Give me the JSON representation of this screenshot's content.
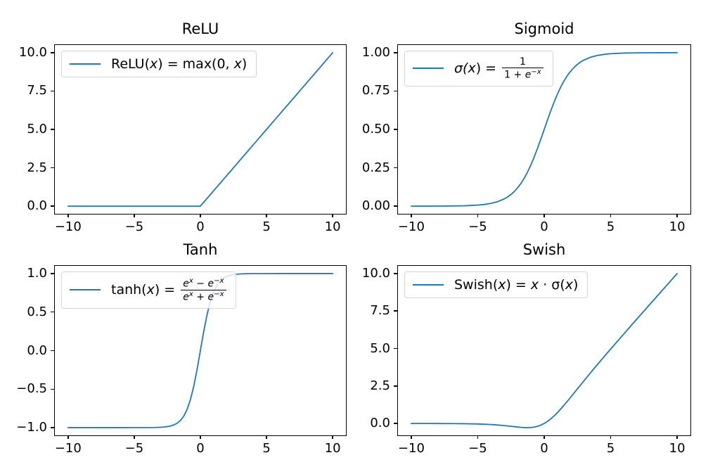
{
  "figure": {
    "background": "#ffffff",
    "line_color": "#1f77b4",
    "legend_position": "upper left"
  },
  "legends": {
    "relu": [
      "ReLU(",
      "x",
      ") = max(0, ",
      "x",
      ")"
    ],
    "sigmoid": {
      "lhs": [
        "σ(",
        "x",
        ") = "
      ],
      "num": "1",
      "den": [
        "1 + ",
        "e",
        "−x"
      ]
    },
    "tanh": {
      "lhs": [
        "tanh(",
        "x",
        ") = "
      ],
      "num": [
        "e",
        "x",
        " − ",
        "e",
        "−x"
      ],
      "den": [
        "e",
        "x",
        " + ",
        "e",
        "−x"
      ]
    },
    "swish": [
      "Swish(",
      "x",
      ") = ",
      "x",
      " · σ(",
      "x",
      ")"
    ]
  },
  "chart_data": [
    {
      "type": "line",
      "title": "ReLU",
      "legend_label": "ReLU(x) = max(0, x)",
      "color": "#1f77b4",
      "grid": false,
      "legend_position": "upper left",
      "xlim": [
        -11,
        11
      ],
      "ylim": [
        -0.5,
        10.5
      ],
      "xticks": [
        -10,
        -5,
        0,
        5,
        10
      ],
      "xtick_labels": [
        "−10",
        "−5",
        "0",
        "5",
        "10"
      ],
      "yticks": [
        0.0,
        2.5,
        5.0,
        7.5,
        10.0
      ],
      "ytick_labels": [
        "0.0",
        "2.5",
        "5.0",
        "7.5",
        "10.0"
      ],
      "x": [
        -10,
        -9,
        -8,
        -7,
        -6,
        -5,
        -4.5,
        -4,
        -3.5,
        -3,
        -2.75,
        -2.5,
        -2.25,
        -2,
        -1.75,
        -1.5,
        -1.25,
        -1,
        -0.75,
        -0.5,
        -0.25,
        0,
        0.25,
        0.5,
        0.75,
        1,
        1.25,
        1.5,
        1.75,
        2,
        2.25,
        2.5,
        2.75,
        3,
        3.5,
        4,
        4.5,
        5,
        6,
        7,
        8,
        9,
        10
      ],
      "y": [
        0,
        0,
        0,
        0,
        0,
        0,
        0,
        0,
        0,
        0,
        0,
        0,
        0,
        0,
        0,
        0,
        0,
        0,
        0,
        0,
        0,
        0,
        0.25,
        0.5,
        0.75,
        1,
        1.25,
        1.5,
        1.75,
        2,
        2.25,
        2.5,
        2.75,
        3,
        3.5,
        4,
        4.5,
        5,
        6,
        7,
        8,
        9,
        10
      ]
    },
    {
      "type": "line",
      "title": "Sigmoid",
      "legend_label": "σ(x) = 1 / (1 + e⁻ˣ)",
      "color": "#1f77b4",
      "grid": false,
      "legend_position": "upper left",
      "xlim": [
        -11,
        11
      ],
      "ylim": [
        -0.05,
        1.05
      ],
      "xticks": [
        -10,
        -5,
        0,
        5,
        10
      ],
      "xtick_labels": [
        "−10",
        "−5",
        "0",
        "5",
        "10"
      ],
      "yticks": [
        0.0,
        0.25,
        0.5,
        0.75,
        1.0
      ],
      "ytick_labels": [
        "0.00",
        "0.25",
        "0.50",
        "0.75",
        "1.00"
      ],
      "x": [
        -10,
        -9,
        -8,
        -7,
        -6,
        -5,
        -4.5,
        -4,
        -3.5,
        -3,
        -2.75,
        -2.5,
        -2.25,
        -2,
        -1.75,
        -1.5,
        -1.25,
        -1,
        -0.75,
        -0.5,
        -0.25,
        0,
        0.25,
        0.5,
        0.75,
        1,
        1.25,
        1.5,
        1.75,
        2,
        2.25,
        2.5,
        2.75,
        3,
        3.5,
        4,
        4.5,
        5,
        6,
        7,
        8,
        9,
        10
      ],
      "y": [
        0.0,
        0.0001,
        0.0003,
        0.0009,
        0.0025,
        0.0067,
        0.011,
        0.018,
        0.0293,
        0.0474,
        0.0601,
        0.0759,
        0.0953,
        0.1192,
        0.148,
        0.1824,
        0.2227,
        0.2689,
        0.3208,
        0.3775,
        0.4378,
        0.5,
        0.5622,
        0.6225,
        0.6792,
        0.7311,
        0.7773,
        0.8176,
        0.852,
        0.8808,
        0.9047,
        0.9241,
        0.9399,
        0.9526,
        0.9707,
        0.982,
        0.989,
        0.9933,
        0.9975,
        0.9991,
        0.9997,
        0.9999,
        1.0
      ]
    },
    {
      "type": "line",
      "title": "Tanh",
      "legend_label": "tanh(x) = (eˣ − e⁻ˣ) / (eˣ + e⁻ˣ)",
      "color": "#1f77b4",
      "grid": false,
      "legend_position": "upper left",
      "xlim": [
        -11,
        11
      ],
      "ylim": [
        -1.1,
        1.1
      ],
      "xticks": [
        -10,
        -5,
        0,
        5,
        10
      ],
      "xtick_labels": [
        "−10",
        "−5",
        "0",
        "5",
        "10"
      ],
      "yticks": [
        -1.0,
        -0.5,
        0.0,
        0.5,
        1.0
      ],
      "ytick_labels": [
        "−1.0",
        "−0.5",
        "0.0",
        "0.5",
        "1.0"
      ],
      "x": [
        -10,
        -9,
        -8,
        -7,
        -6,
        -5,
        -4.5,
        -4,
        -3.5,
        -3,
        -2.75,
        -2.5,
        -2.25,
        -2,
        -1.75,
        -1.5,
        -1.25,
        -1,
        -0.75,
        -0.5,
        -0.25,
        0,
        0.25,
        0.5,
        0.75,
        1,
        1.25,
        1.5,
        1.75,
        2,
        2.25,
        2.5,
        2.75,
        3,
        3.5,
        4,
        4.5,
        5,
        6,
        7,
        8,
        9,
        10
      ],
      "y": [
        -1,
        -1,
        -1,
        -1,
        -1,
        -0.9999,
        -0.9998,
        -0.9993,
        -0.9982,
        -0.9951,
        -0.9919,
        -0.9866,
        -0.978,
        -0.964,
        -0.9414,
        -0.9051,
        -0.8483,
        -0.7616,
        -0.6351,
        -0.4621,
        -0.2449,
        0,
        0.2449,
        0.4621,
        0.6351,
        0.7616,
        0.8483,
        0.9051,
        0.9414,
        0.964,
        0.978,
        0.9866,
        0.9919,
        0.9951,
        0.9982,
        0.9993,
        0.9998,
        0.9999,
        1,
        1,
        1,
        1,
        1
      ]
    },
    {
      "type": "line",
      "title": "Swish",
      "legend_label": "Swish(x) = x · σ(x)",
      "color": "#1f77b4",
      "grid": false,
      "legend_position": "upper left",
      "xlim": [
        -11,
        11
      ],
      "ylim": [
        -0.7923,
        10.5134
      ],
      "xticks": [
        -10,
        -5,
        0,
        5,
        10
      ],
      "xtick_labels": [
        "−10",
        "−5",
        "0",
        "5",
        "10"
      ],
      "yticks": [
        0.0,
        2.5,
        5.0,
        7.5,
        10.0
      ],
      "ytick_labels": [
        "0.0",
        "2.5",
        "5.0",
        "7.5",
        "10.0"
      ],
      "x": [
        -10,
        -9,
        -8,
        -7,
        -6,
        -5,
        -4.5,
        -4,
        -3.5,
        -3,
        -2.75,
        -2.5,
        -2.25,
        -2,
        -1.75,
        -1.5,
        -1.25,
        -1,
        -0.75,
        -0.5,
        -0.25,
        0,
        0.25,
        0.5,
        0.75,
        1,
        1.25,
        1.5,
        1.75,
        2,
        2.25,
        2.5,
        2.75,
        3,
        3.5,
        4,
        4.5,
        5,
        6,
        7,
        8,
        9,
        10
      ],
      "y": [
        -0.0005,
        -0.0011,
        -0.0027,
        -0.0064,
        -0.0148,
        -0.0335,
        -0.0495,
        -0.0719,
        -0.1026,
        -0.1423,
        -0.1654,
        -0.1897,
        -0.2144,
        -0.2384,
        -0.259,
        -0.2736,
        -0.2784,
        -0.2689,
        -0.2406,
        -0.1888,
        -0.1094,
        0,
        0.1406,
        0.3113,
        0.5094,
        0.7311,
        0.9716,
        1.2263,
        1.491,
        1.7616,
        2.0355,
        2.3102,
        2.5846,
        2.8577,
        3.3975,
        3.9281,
        4.4505,
        4.9665,
        5.9852,
        6.994,
        7.9973,
        8.9989,
        9.9995
      ]
    }
  ]
}
